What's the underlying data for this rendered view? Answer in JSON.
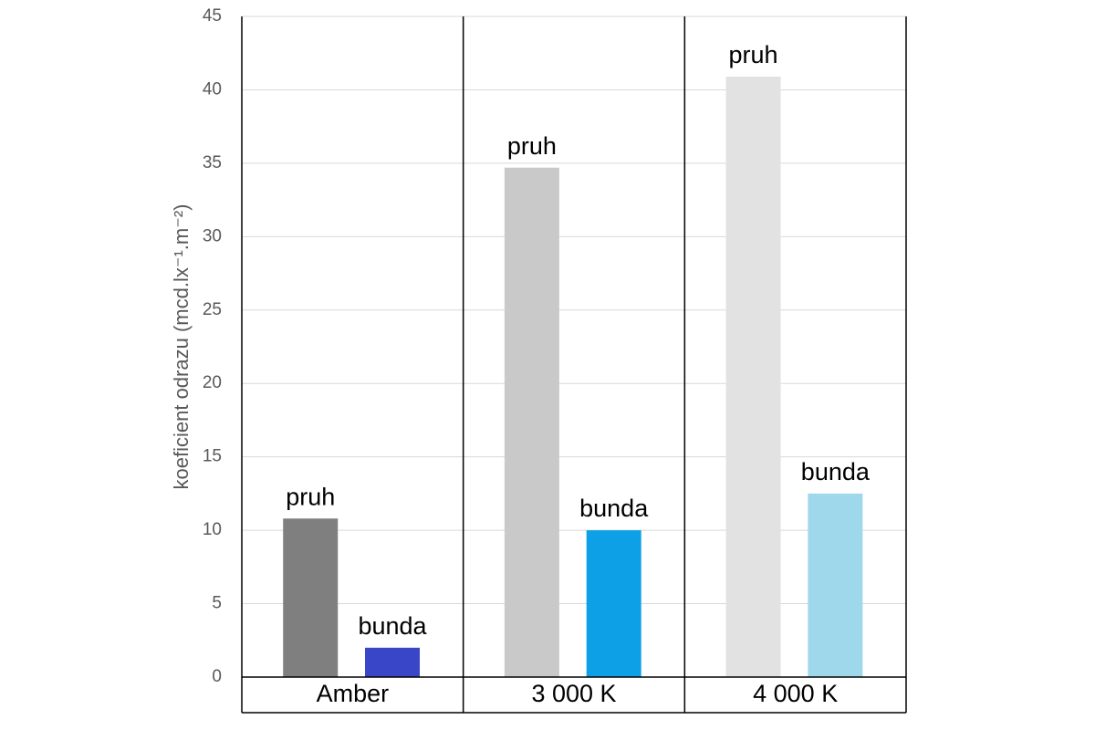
{
  "chart_data": {
    "type": "bar",
    "y_label": "koeficient odrazu (mcd.lx⁻¹.m⁻²)",
    "categories": [
      "Amber",
      "3 000 K",
      "4 000 K"
    ],
    "series": [
      {
        "name": "pruh",
        "colors": [
          "#7f7f7f",
          "#c9c9c9",
          "#e2e2e2"
        ],
        "values": [
          10.8,
          34.7,
          40.9
        ]
      },
      {
        "name": "bunda",
        "colors": [
          "#3a46c8",
          "#0ea0e6",
          "#9fd8eb"
        ],
        "values": [
          2.0,
          10.0,
          12.5
        ]
      }
    ],
    "ylim": [
      0,
      45
    ],
    "yticks": [
      0,
      5,
      10,
      15,
      20,
      25,
      30,
      35,
      40,
      45
    ],
    "grid": true
  }
}
